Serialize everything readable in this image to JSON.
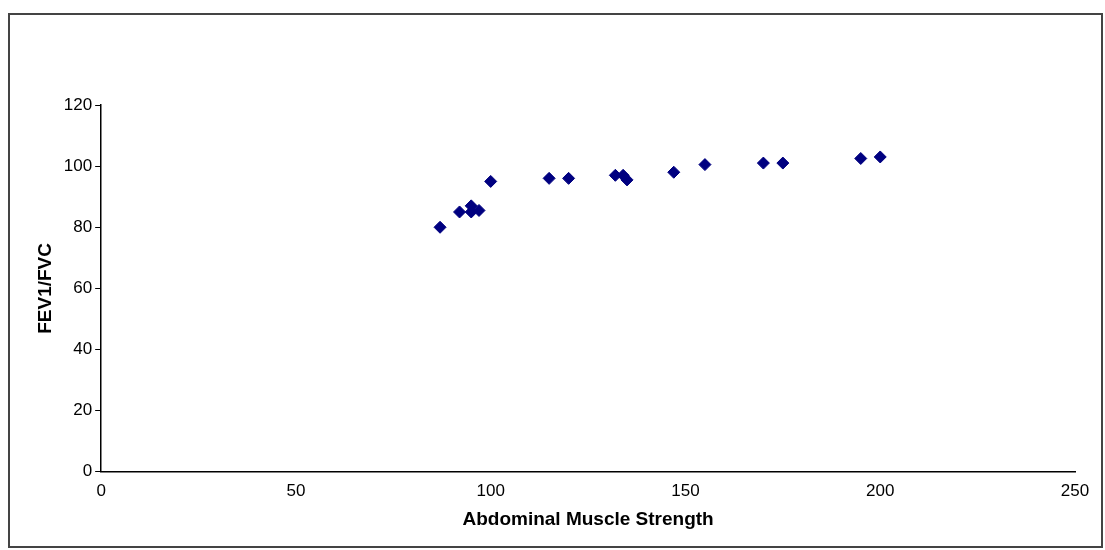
{
  "chart_data": {
    "type": "scatter",
    "xlabel": "Abdominal Muscle Strength",
    "ylabel": "FEV1/FVC",
    "x": [
      87,
      92,
      95,
      95,
      97,
      100,
      115,
      120,
      132,
      134,
      135,
      147,
      155,
      170,
      175,
      195,
      200
    ],
    "values": [
      80,
      85,
      87,
      85,
      85.5,
      95,
      96,
      96,
      97,
      97,
      95.5,
      98,
      100.5,
      101,
      101,
      102.5,
      103
    ],
    "color": "#000080",
    "marker": "diamond",
    "xlim": [
      0,
      250
    ],
    "xticks": [
      0,
      50,
      100,
      150,
      200,
      250
    ],
    "ylim": [
      0,
      120
    ],
    "yticks": [
      0,
      20,
      40,
      60,
      80,
      100,
      120
    ],
    "grid": false,
    "legend": false
  }
}
